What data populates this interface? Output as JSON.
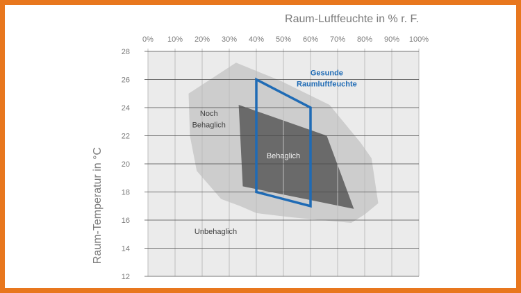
{
  "chart_data": {
    "type": "area",
    "title": "",
    "xlabel": "Raum-Luftfeuchte in % r. F.",
    "ylabel": "Raum-Temperatur in °C",
    "xlim": [
      0,
      100
    ],
    "ylim": [
      12,
      28
    ],
    "x_ticks": [
      0,
      10,
      20,
      30,
      40,
      50,
      60,
      70,
      80,
      90,
      100
    ],
    "x_tick_labels": [
      "0%",
      "10%",
      "20%",
      "30%",
      "40%",
      "50%",
      "60%",
      "70%",
      "80%",
      "90%",
      "100%"
    ],
    "y_ticks": [
      12,
      14,
      16,
      18,
      20,
      22,
      24,
      26,
      28
    ],
    "x_axis_position": "top",
    "grid": true,
    "colors": {
      "frame": "#e8771e",
      "plot_bg": "#ebebeb",
      "noch_behaglich": "#cdcdcd",
      "behaglich": "#6a6a6a",
      "gesund": "#1f6bb5"
    },
    "regions": [
      {
        "name": "Noch Behaglich",
        "label": [
          "Noch",
          "Behaglich"
        ],
        "points": [
          [
            15,
            25
          ],
          [
            32.5,
            27.2
          ],
          [
            49,
            25.9
          ],
          [
            67,
            24.2
          ],
          [
            78.5,
            21.5
          ],
          [
            82.5,
            20.4
          ],
          [
            85,
            17.2
          ],
          [
            80,
            16.4
          ],
          [
            75,
            15.8
          ],
          [
            53,
            16.2
          ],
          [
            40,
            16.5
          ],
          [
            34,
            17
          ],
          [
            27,
            17.5
          ],
          [
            22.5,
            18.5
          ],
          [
            18,
            19.5
          ],
          [
            15.5,
            22
          ]
        ]
      },
      {
        "name": "Behaglich",
        "label": [
          "Behaglich"
        ],
        "points": [
          [
            33.5,
            24.2
          ],
          [
            66,
            22
          ],
          [
            76,
            16.8
          ],
          [
            35,
            18.4
          ]
        ]
      }
    ],
    "highlight": {
      "name": "Gesunde Raumluftfeuchte",
      "label": [
        "Gesunde",
        "Raumluftfeuchte"
      ],
      "points": [
        [
          40,
          26
        ],
        [
          60,
          24
        ],
        [
          60,
          17
        ],
        [
          40,
          18
        ]
      ]
    },
    "annotations": [
      {
        "text": "Unbehaglich",
        "x": 25,
        "y": 15.2
      }
    ]
  }
}
